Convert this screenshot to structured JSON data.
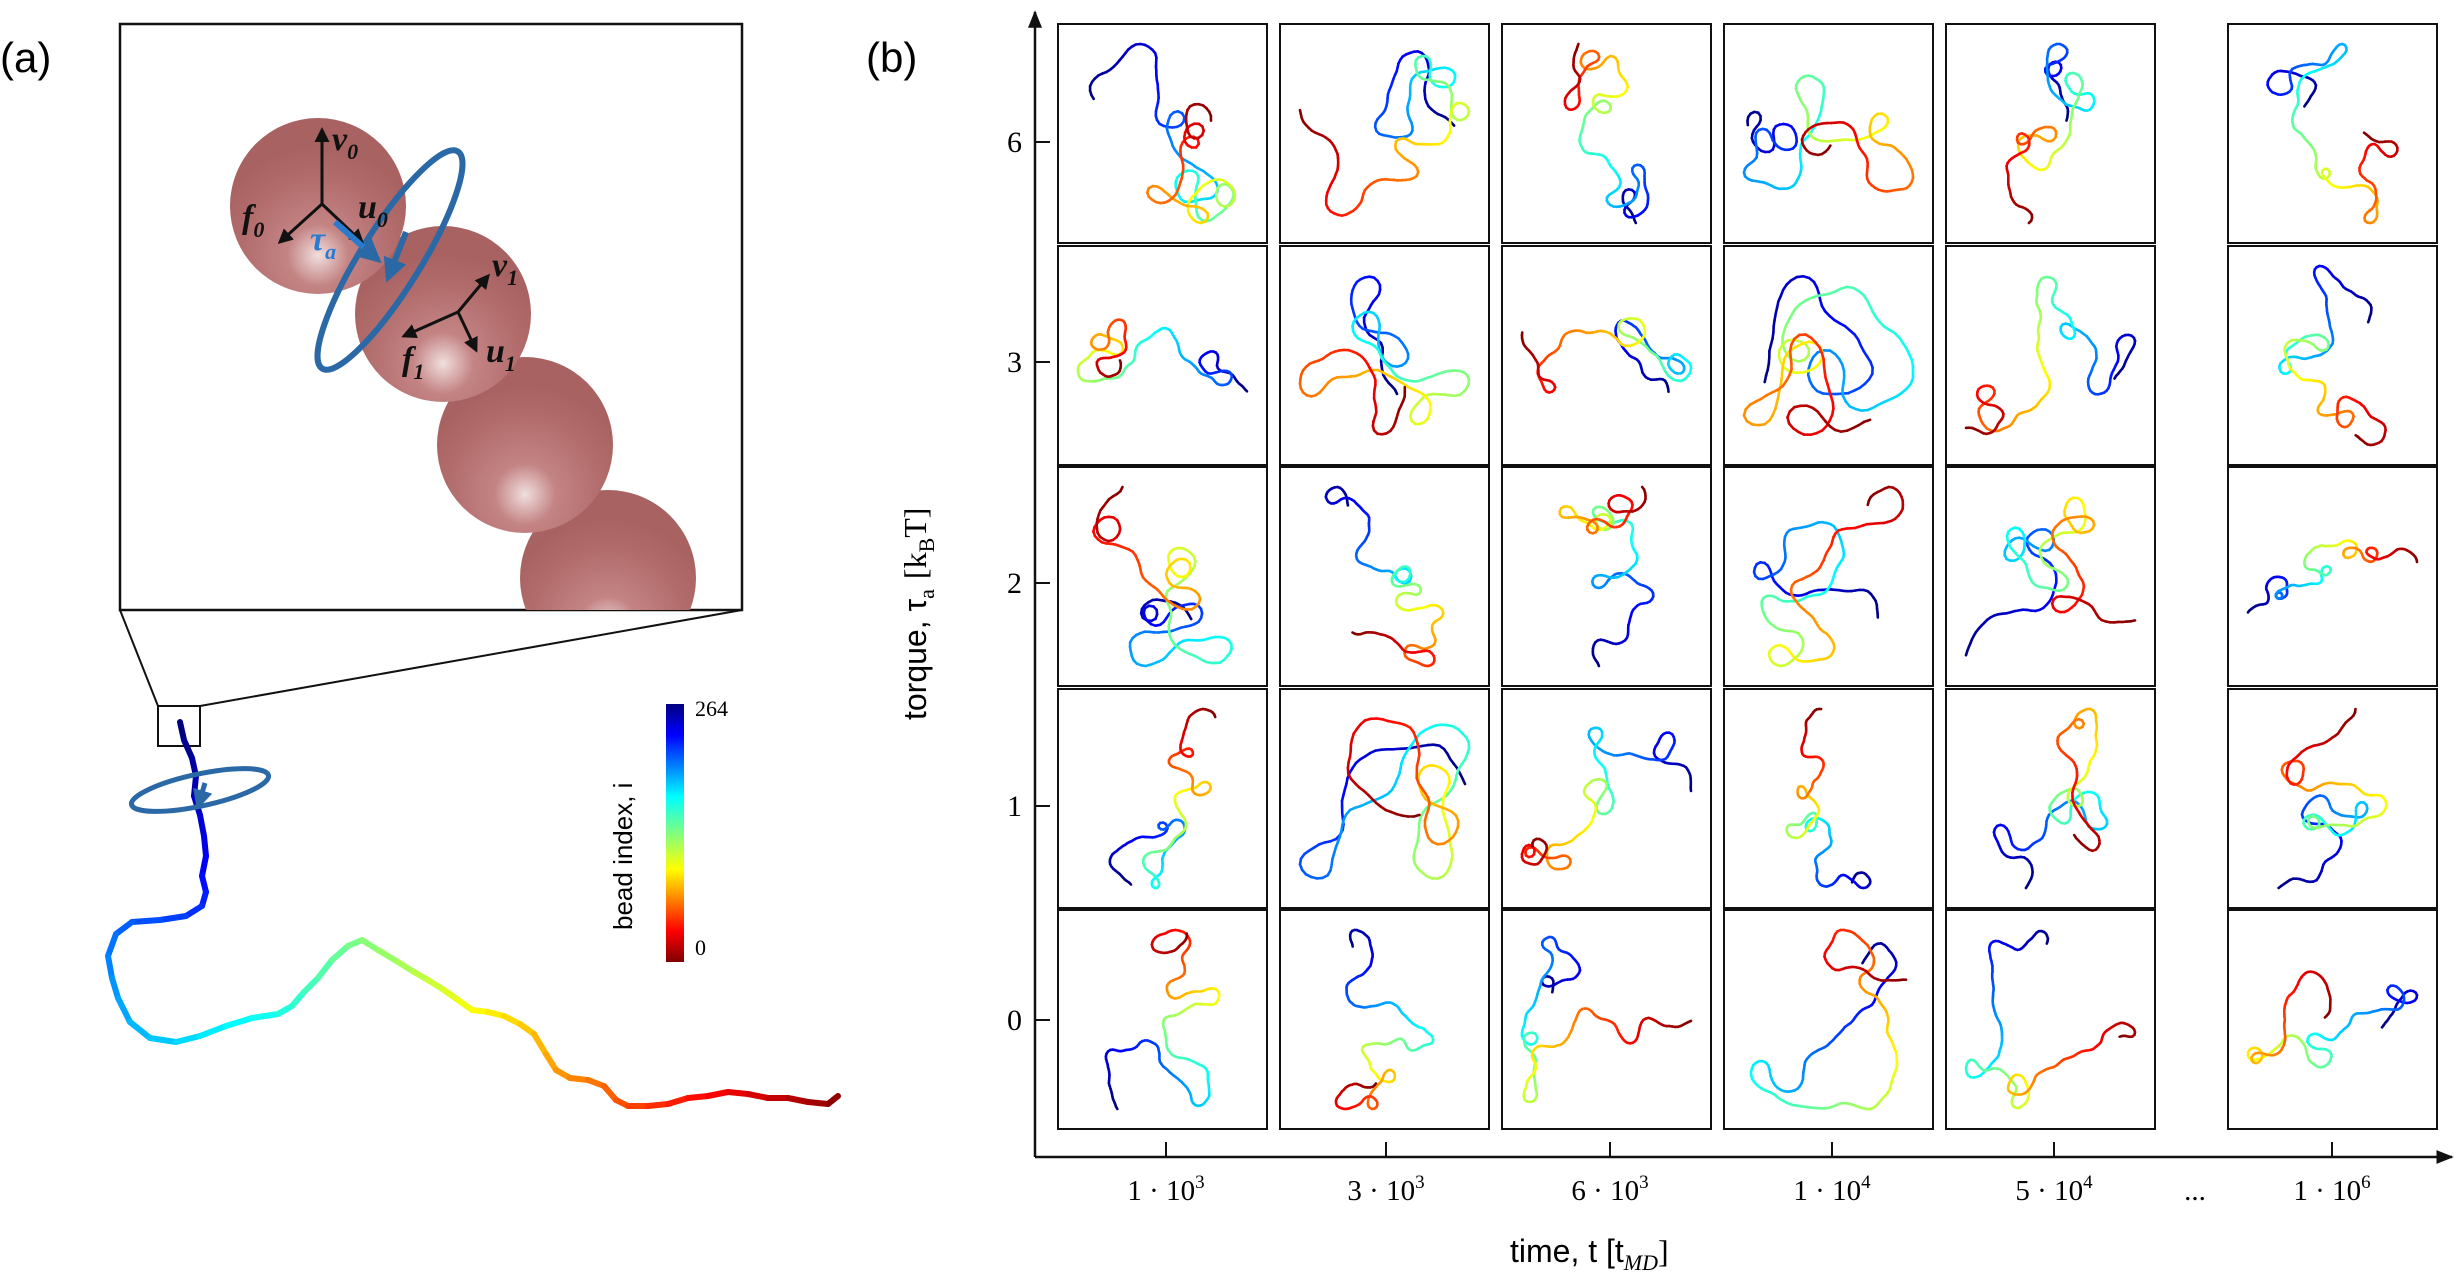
{
  "panel_a": {
    "label": "(a)",
    "zoom_labels": [
      {
        "base": "v",
        "sub": "0"
      },
      {
        "base": "f",
        "sub": "0"
      },
      {
        "base": "u",
        "sub": "0"
      },
      {
        "base": "τ",
        "sub": "a"
      },
      {
        "base": "v",
        "sub": "1"
      },
      {
        "base": "f",
        "sub": "1"
      },
      {
        "base": "u",
        "sub": "1"
      }
    ],
    "colorbar": {
      "title": "bead index, i",
      "max": "264",
      "min": "0"
    },
    "colors": {
      "bead": "#b56e6e",
      "torque_arrow": "#2a68a6",
      "torque_label": "#2a7bd0"
    }
  },
  "panel_b": {
    "label": "(b)",
    "ylabel": "torque, τ",
    "ylabel_sub": "a",
    "ylabel_unit": "[k",
    "ylabel_unit_sub": "B",
    "ylabel_unit_end": "T]",
    "y_ticks": [
      "6",
      "3",
      "2",
      "1",
      "0"
    ],
    "x_ticks": [
      "1 · 10",
      "3 · 10",
      "6 · 10",
      "1 · 10",
      "5 · 10",
      "1 · 10"
    ],
    "x_tick_exps": [
      "3",
      "3",
      "3",
      "4",
      "4",
      "6"
    ],
    "ellipsis": "...",
    "xlabel": "time, t [t",
    "xlabel_sub": "MD",
    "xlabel_end": "]"
  },
  "chart_data": {
    "type": "grid",
    "rows_torque": [
      6,
      3,
      2,
      1,
      0
    ],
    "cols_time": [
      1000,
      3000,
      6000,
      10000,
      50000,
      1000000
    ],
    "colormap": "jet",
    "colormap_range": [
      0,
      264
    ]
  }
}
